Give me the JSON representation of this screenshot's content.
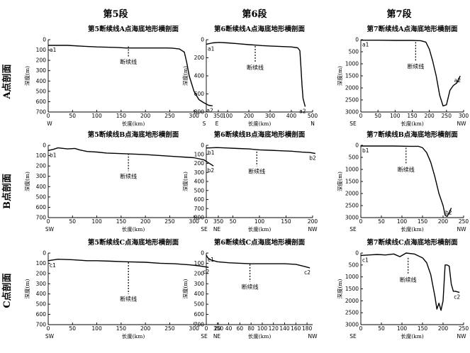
{
  "columns": [
    "第5段",
    "第6段",
    "第7段"
  ],
  "rows": [
    "A点剖面",
    "B点剖面",
    "C点剖面"
  ],
  "depth_label": "深度(m)",
  "length_label": "长度(km)",
  "break_label": "断续线",
  "chart_data": [
    {
      "type": "line",
      "row": 0,
      "col": 0,
      "title": "第5断续线A点海底地形横剖面",
      "xlabel": "长度(km)",
      "ylabel": "深度(m)",
      "xlim": [
        0,
        350
      ],
      "ylim": [
        700,
        0
      ],
      "xticks": [
        0,
        50,
        100,
        150,
        200,
        250,
        300,
        350
      ],
      "yticks": [
        0,
        100,
        200,
        300,
        400,
        500,
        600,
        700
      ],
      "dir_left": "W",
      "dir_right": "E",
      "start_label": "a1",
      "end_label": "a2",
      "break_x": 165,
      "break_y": [
        65,
        165
      ],
      "x": [
        0,
        40,
        70,
        100,
        140,
        160,
        200,
        210,
        245,
        255,
        270,
        280,
        285,
        290,
        300,
        310,
        320,
        330,
        338
      ],
      "y": [
        55,
        55,
        63,
        70,
        75,
        80,
        80,
        80,
        80,
        82,
        90,
        120,
        220,
        350,
        500,
        580,
        610,
        635,
        640
      ]
    },
    {
      "type": "line",
      "row": 0,
      "col": 1,
      "title": "第6断续线A点海底地形横剖面",
      "xlabel": "长度(km)",
      "ylabel": "深度(m)",
      "xlim": [
        0,
        500
      ],
      "ylim": [
        800,
        0
      ],
      "xticks": [
        0,
        100,
        200,
        300,
        400,
        500
      ],
      "yticks": [
        0,
        200,
        400,
        600,
        800
      ],
      "dir_left": "S",
      "dir_right": "N",
      "start_label": "a1",
      "end_label": "a2",
      "break_x": 230,
      "break_y": [
        70,
        250
      ],
      "x": [
        0,
        30,
        60,
        100,
        150,
        200,
        230,
        260,
        300,
        350,
        400,
        430,
        440,
        445,
        450,
        455,
        465
      ],
      "y": [
        50,
        35,
        30,
        35,
        45,
        55,
        60,
        65,
        70,
        75,
        80,
        90,
        120,
        300,
        500,
        650,
        740
      ]
    },
    {
      "type": "line",
      "row": 0,
      "col": 2,
      "title": "第7断续线A点海底地形横剖面",
      "xlabel": "长度(km)",
      "ylabel": "深度(m)",
      "xlim": [
        0,
        300
      ],
      "ylim": [
        3000,
        0
      ],
      "xticks": [
        0,
        50,
        100,
        150,
        200,
        250,
        300
      ],
      "yticks": [
        0,
        500,
        1000,
        1500,
        2000,
        2500,
        3000
      ],
      "dir_left": "SE",
      "dir_right": "NW",
      "start_label": "a1",
      "end_label": "a2",
      "break_x": 160,
      "break_y": [
        100,
        900
      ],
      "x": [
        0,
        50,
        100,
        150,
        175,
        190,
        200,
        210,
        220,
        230,
        240,
        250,
        260,
        270,
        280,
        285,
        290
      ],
      "y": [
        20,
        20,
        30,
        30,
        40,
        100,
        400,
        900,
        1500,
        2300,
        2750,
        2700,
        2100,
        1900,
        1800,
        1650,
        1500
      ]
    },
    {
      "type": "line",
      "row": 1,
      "col": 0,
      "title": "第5断续线B点海底地形横剖面",
      "xlabel": "长度(km)",
      "ylabel": "深度(m)",
      "xlim": [
        0,
        350
      ],
      "ylim": [
        700,
        0
      ],
      "xticks": [
        0,
        50,
        100,
        150,
        200,
        250,
        300,
        350
      ],
      "yticks": [
        0,
        100,
        200,
        300,
        400,
        500,
        600,
        700
      ],
      "dir_left": "SW",
      "dir_right": "NE",
      "start_label": "b1",
      "end_label": "b2",
      "break_x": 165,
      "break_y": [
        80,
        250
      ],
      "x": [
        0,
        10,
        20,
        40,
        55,
        65,
        80,
        100,
        120,
        150,
        200,
        250,
        300,
        320,
        330,
        340
      ],
      "y": [
        50,
        40,
        25,
        35,
        30,
        45,
        60,
        65,
        75,
        80,
        90,
        105,
        120,
        140,
        170,
        200
      ]
    },
    {
      "type": "line",
      "row": 1,
      "col": 1,
      "title": "第6断续线B点海底地形横剖面",
      "xlabel": "长度(km)",
      "ylabel": "深度(m)",
      "xlim": [
        0,
        200
      ],
      "ylim": [
        800,
        0
      ],
      "xticks": [
        0,
        50,
        100,
        150,
        200
      ],
      "yticks": [
        0,
        100,
        200,
        300,
        400,
        500,
        600,
        700,
        800
      ],
      "dir_left": "SE",
      "dir_right": "NW",
      "start_label": "b1",
      "end_label": "b2",
      "break_x": 95,
      "break_y": [
        70,
        230
      ],
      "x": [
        0,
        20,
        40,
        60,
        80,
        100,
        120,
        140,
        160,
        180,
        195,
        205
      ],
      "y": [
        30,
        25,
        30,
        35,
        40,
        50,
        55,
        60,
        65,
        75,
        80,
        90
      ]
    },
    {
      "type": "line",
      "row": 1,
      "col": 2,
      "title": "第7断续线B点海底地形横剖面",
      "xlabel": "长度(km)",
      "ylabel": "深度(m)",
      "xlim": [
        0,
        250
      ],
      "ylim": [
        3000,
        0
      ],
      "xticks": [
        0,
        50,
        100,
        150,
        200,
        250
      ],
      "yticks": [
        0,
        500,
        1000,
        1500,
        2000,
        2500,
        3000
      ],
      "dir_left": "SE",
      "dir_right": "NW",
      "start_label": "b1",
      "end_label": "b2",
      "break_x": 110,
      "break_y": [
        100,
        800
      ],
      "x": [
        0,
        40,
        80,
        120,
        140,
        150,
        160,
        170,
        180,
        190,
        200,
        205,
        210,
        215,
        220
      ],
      "y": [
        30,
        30,
        30,
        40,
        40,
        100,
        300,
        700,
        1300,
        2000,
        2500,
        2900,
        2950,
        2800,
        2600
      ]
    },
    {
      "type": "line",
      "row": 2,
      "col": 0,
      "title": "第5断续线C点海底地形横剖面",
      "xlabel": "长度(km)",
      "ylabel": "深度(m)",
      "xlim": [
        0,
        350
      ],
      "ylim": [
        700,
        0
      ],
      "xticks": [
        0,
        50,
        100,
        150,
        200,
        250,
        300,
        350
      ],
      "yticks": [
        0,
        100,
        200,
        300,
        400,
        500,
        600,
        700
      ],
      "dir_left": "SW",
      "dir_right": "NE",
      "start_label": "c1",
      "end_label": "c2",
      "break_x": 165,
      "break_y": [
        90,
        400
      ],
      "x": [
        0,
        20,
        50,
        80,
        100,
        130,
        160,
        200,
        230,
        260,
        290,
        310,
        330
      ],
      "y": [
        75,
        60,
        65,
        75,
        75,
        80,
        85,
        90,
        100,
        105,
        115,
        125,
        140
      ]
    },
    {
      "type": "line",
      "row": 2,
      "col": 1,
      "title": "第6断续线C点海底地形横剖面",
      "xlabel": "长度(km)",
      "ylabel": "深度(m)",
      "xlim": [
        0,
        190
      ],
      "ylim": [
        700,
        0
      ],
      "xticks": [
        0,
        20,
        40,
        60,
        80,
        100,
        120,
        140,
        160,
        180
      ],
      "yticks": [
        0,
        100,
        200,
        300,
        400,
        500,
        600,
        700
      ],
      "dir_left": "SE",
      "dir_right": "NW",
      "start_label": "c1",
      "end_label": "c2",
      "break_x": 78,
      "break_y": [
        110,
        280
      ],
      "x": [
        0,
        2,
        5,
        10,
        20,
        40,
        60,
        80,
        100,
        120,
        140,
        160,
        175,
        185
      ],
      "y": [
        20,
        40,
        60,
        70,
        85,
        95,
        100,
        105,
        105,
        105,
        105,
        110,
        130,
        145
      ]
    },
    {
      "type": "line",
      "row": 2,
      "col": 2,
      "title": "第7断续线C点海底地形横剖面",
      "xlabel": "长度(km)",
      "ylabel": "深度(m)",
      "xlim": [
        0,
        250
      ],
      "ylim": [
        3000,
        0
      ],
      "xticks": [
        0,
        50,
        100,
        150,
        200,
        250
      ],
      "yticks": [
        0,
        500,
        1000,
        1500,
        2000,
        2500,
        3000
      ],
      "dir_left": "SE",
      "dir_right": "NW",
      "start_label": "c1",
      "end_label": "c2",
      "break_x": 115,
      "break_y": [
        200,
        900
      ],
      "x": [
        0,
        20,
        40,
        60,
        80,
        95,
        110,
        130,
        150,
        160,
        170,
        180,
        185,
        190,
        195,
        200,
        205,
        210,
        215,
        220,
        225,
        230,
        240
      ],
      "y": [
        100,
        80,
        60,
        80,
        40,
        150,
        0,
        40,
        200,
        400,
        900,
        1800,
        2350,
        2100,
        2400,
        2000,
        500,
        500,
        550,
        1300,
        1600,
        1600,
        1650
      ]
    }
  ]
}
